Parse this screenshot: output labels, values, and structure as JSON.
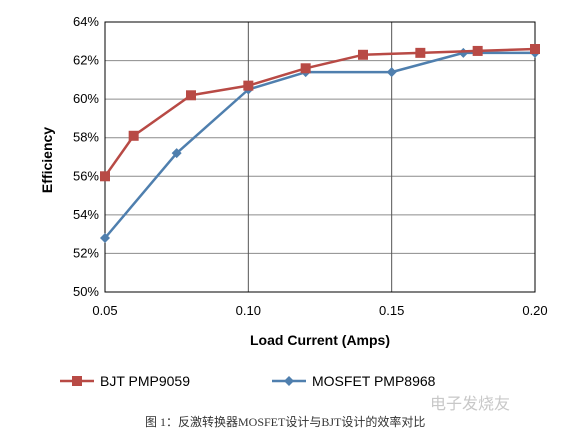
{
  "chart_data": {
    "type": "line",
    "xlabel": "Load Current (Amps)",
    "ylabel": "Efficiency",
    "xlim": [
      0.05,
      0.2
    ],
    "ylim": [
      50,
      64
    ],
    "x_ticks": [
      "0.05",
      "0.10",
      "0.15",
      "0.20"
    ],
    "y_ticks": [
      "50%",
      "52%",
      "54%",
      "56%",
      "58%",
      "60%",
      "62%",
      "64%"
    ],
    "grid": true,
    "legend_position": "bottom",
    "series": [
      {
        "name": "BJT PMP9059",
        "color": "#b84a45",
        "marker": "square",
        "x": [
          0.05,
          0.06,
          0.08,
          0.1,
          0.12,
          0.14,
          0.16,
          0.18,
          0.2
        ],
        "y": [
          56.0,
          58.1,
          60.2,
          60.7,
          61.6,
          62.3,
          62.4,
          62.5,
          62.6
        ]
      },
      {
        "name": "MOSFET PMP8968",
        "color": "#4f7fae",
        "marker": "diamond",
        "x": [
          0.05,
          0.075,
          0.1,
          0.12,
          0.15,
          0.175,
          0.2
        ],
        "y": [
          52.8,
          57.2,
          60.5,
          61.4,
          61.4,
          62.4,
          62.4
        ]
      }
    ]
  },
  "caption": "图 1：反激转换器MOSFET设计与BJT设计的效率对比",
  "watermark": "电子发烧友"
}
